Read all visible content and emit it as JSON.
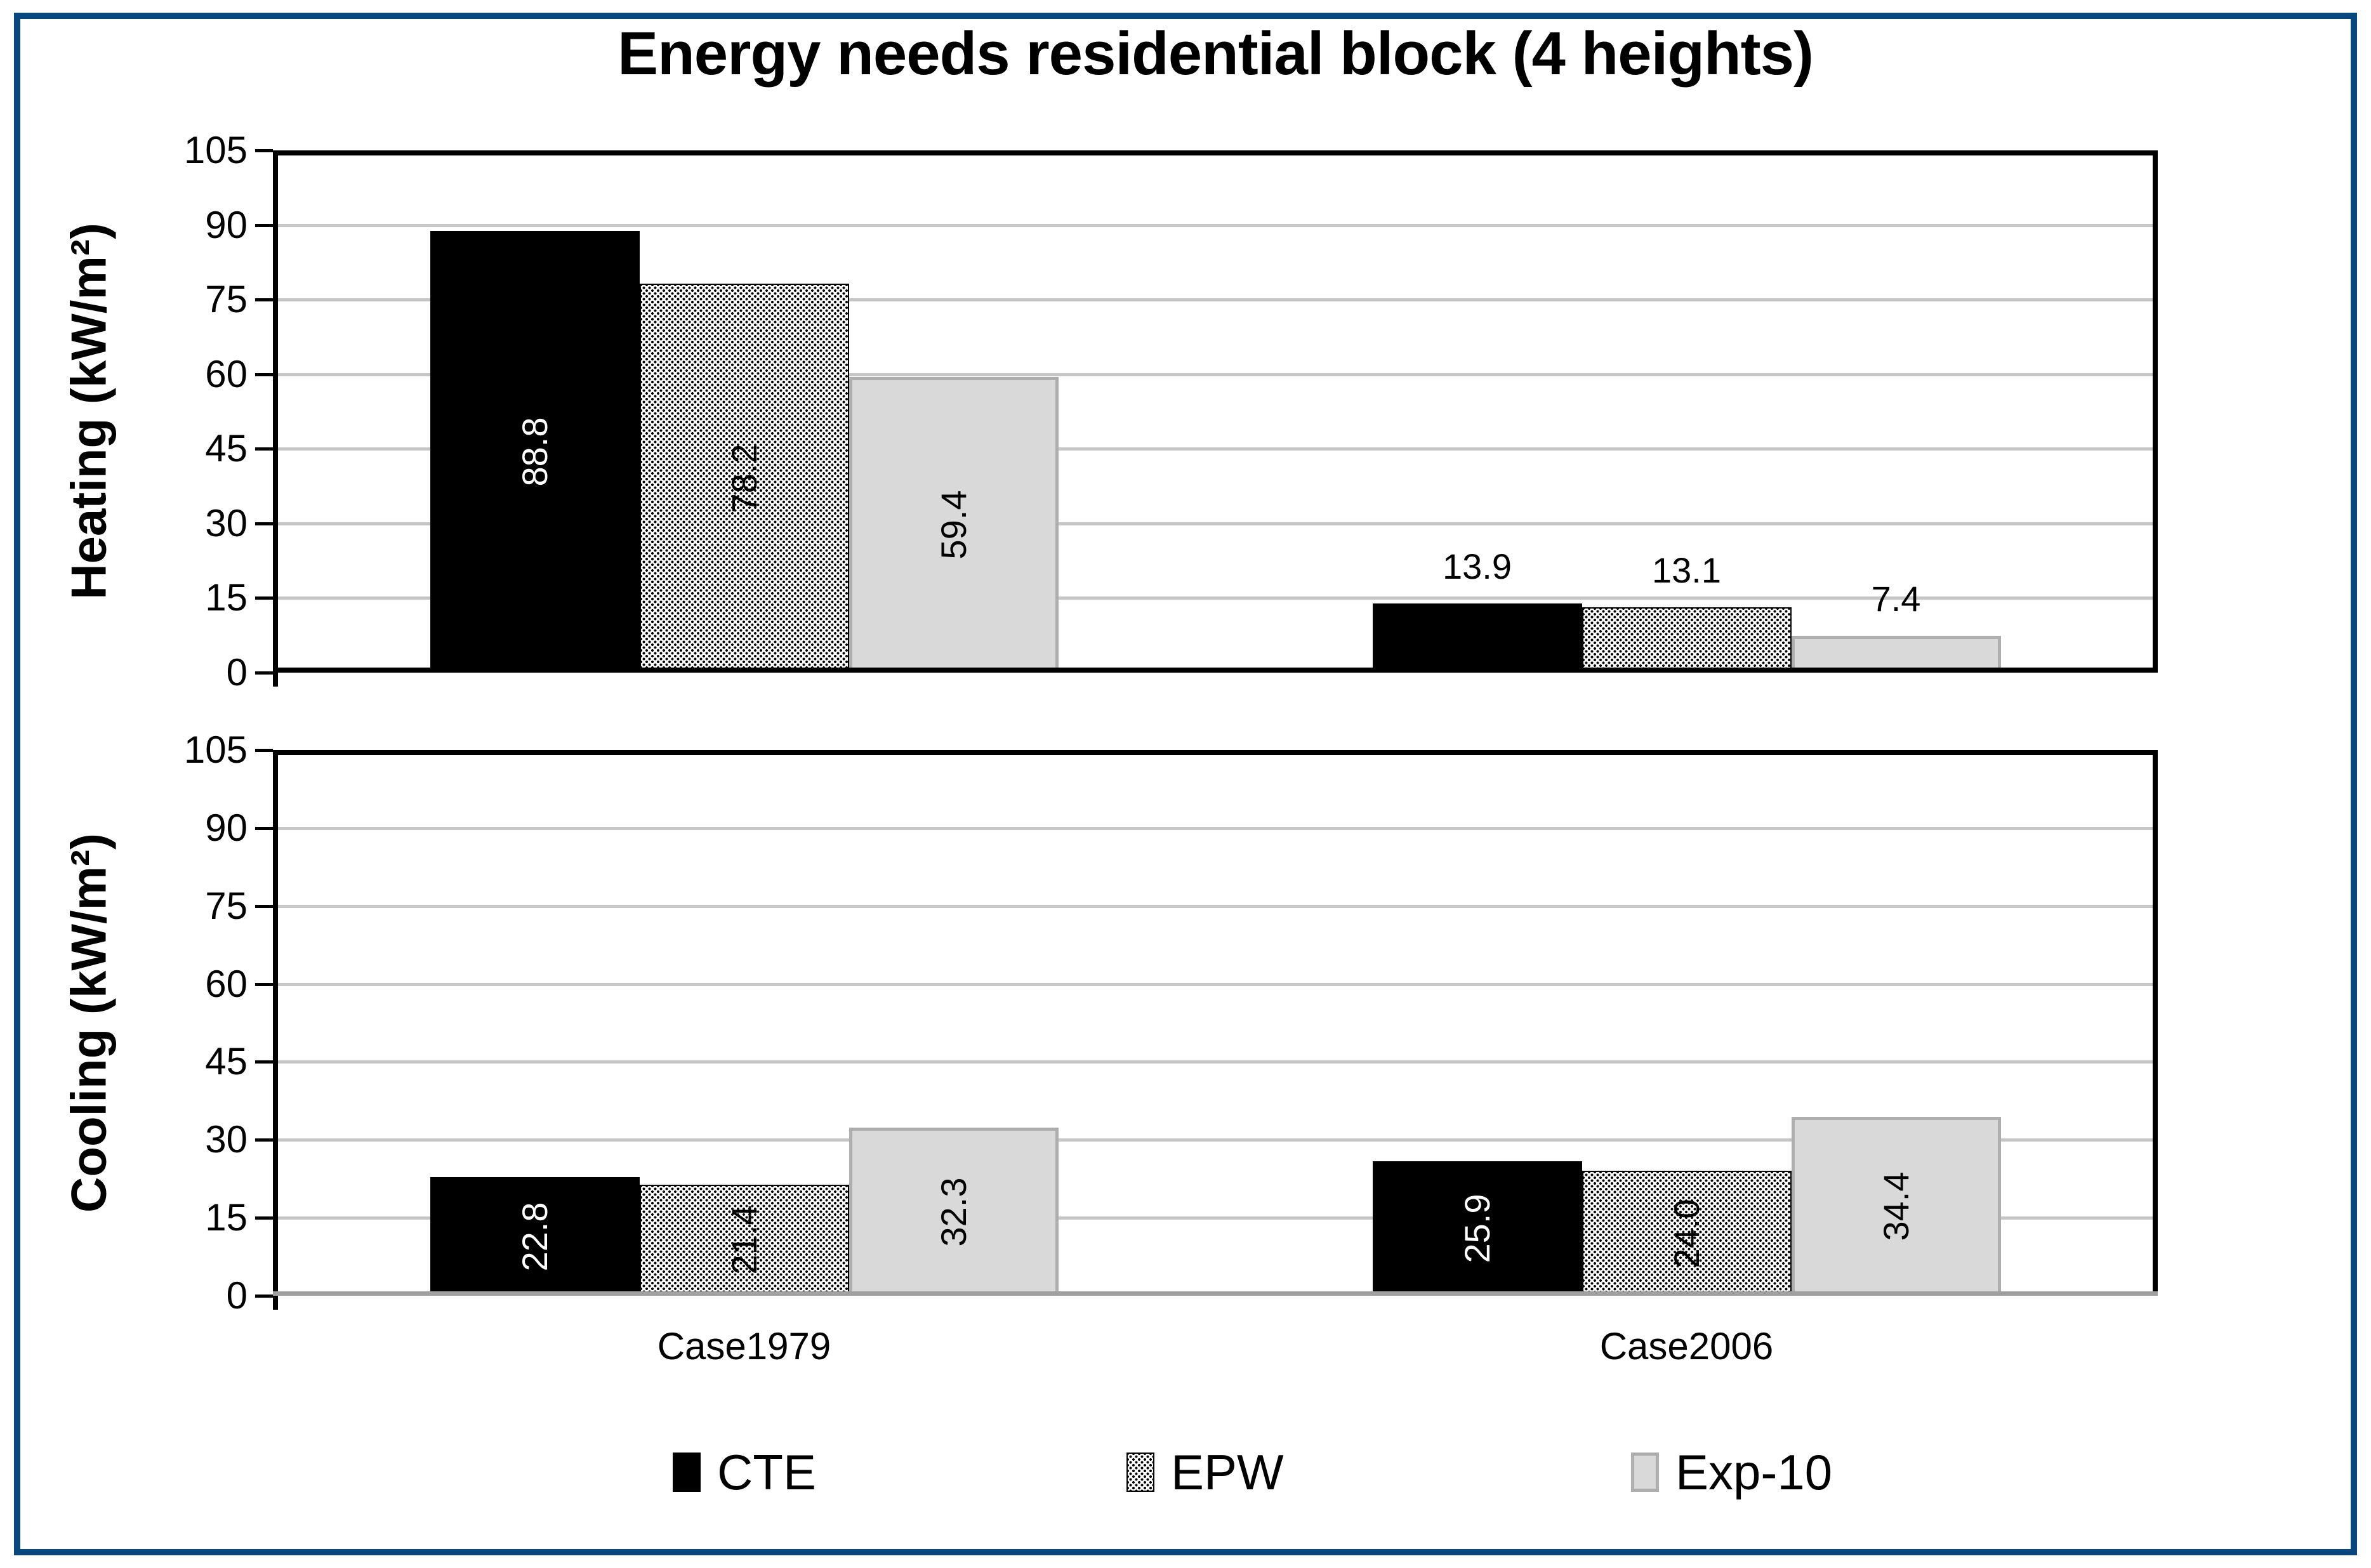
{
  "title": "Energy needs residential block (4 heights)",
  "frame_color": "#07477d",
  "colors": {
    "cte_fill": "#000000",
    "epw_dot": "#000000",
    "exp10_fill": "#d9d9d9",
    "exp10_border": "#aeaeae",
    "gridline": "#c6c6c6",
    "axis_black": "#000000",
    "cooling_baseline_gray": "#a0a0a0"
  },
  "chart_data": [
    {
      "type": "bar",
      "id": "heating",
      "ylabel": "Heating (kW/m²)",
      "ylim": [
        0,
        105
      ],
      "yticks": [
        0,
        15,
        30,
        45,
        60,
        75,
        90,
        105
      ],
      "grid": true,
      "baseline": "black",
      "categories": [
        "Case1979",
        "Case2006"
      ],
      "show_category_labels": false,
      "series": [
        {
          "name": "CTE",
          "values": [
            88.8,
            13.9
          ],
          "labels": [
            "88.8",
            "13.9"
          ],
          "placement": [
            "inside",
            "above"
          ]
        },
        {
          "name": "EPW",
          "values": [
            78.2,
            13.1
          ],
          "labels": [
            "78.2",
            "13.1"
          ],
          "placement": [
            "inside",
            "above"
          ]
        },
        {
          "name": "Exp-10",
          "values": [
            59.4,
            7.4
          ],
          "labels": [
            "59.4",
            "7.4"
          ],
          "placement": [
            "inside",
            "above"
          ]
        }
      ]
    },
    {
      "type": "bar",
      "id": "cooling",
      "ylabel": "Cooling (kW/m²)",
      "ylim": [
        0,
        105
      ],
      "yticks": [
        0,
        15,
        30,
        45,
        60,
        75,
        90,
        105
      ],
      "grid": true,
      "baseline": "gray",
      "categories": [
        "Case1979",
        "Case2006"
      ],
      "show_category_labels": true,
      "series": [
        {
          "name": "CTE",
          "values": [
            22.8,
            25.9
          ],
          "labels": [
            "22.8",
            "25.9"
          ],
          "placement": [
            "inside",
            "inside"
          ]
        },
        {
          "name": "EPW",
          "values": [
            21.4,
            24.0
          ],
          "labels": [
            "21.4",
            "24.0"
          ],
          "placement": [
            "inside",
            "inside"
          ]
        },
        {
          "name": "Exp-10",
          "values": [
            32.3,
            34.4
          ],
          "labels": [
            "32.3",
            "34.4"
          ],
          "placement": [
            "inside",
            "inside"
          ]
        }
      ]
    }
  ],
  "legend": {
    "position": "bottom",
    "items": [
      {
        "label": "CTE",
        "swatch": "cte"
      },
      {
        "label": "EPW",
        "swatch": "epw"
      },
      {
        "label": "Exp-10",
        "swatch": "exp10"
      }
    ]
  }
}
